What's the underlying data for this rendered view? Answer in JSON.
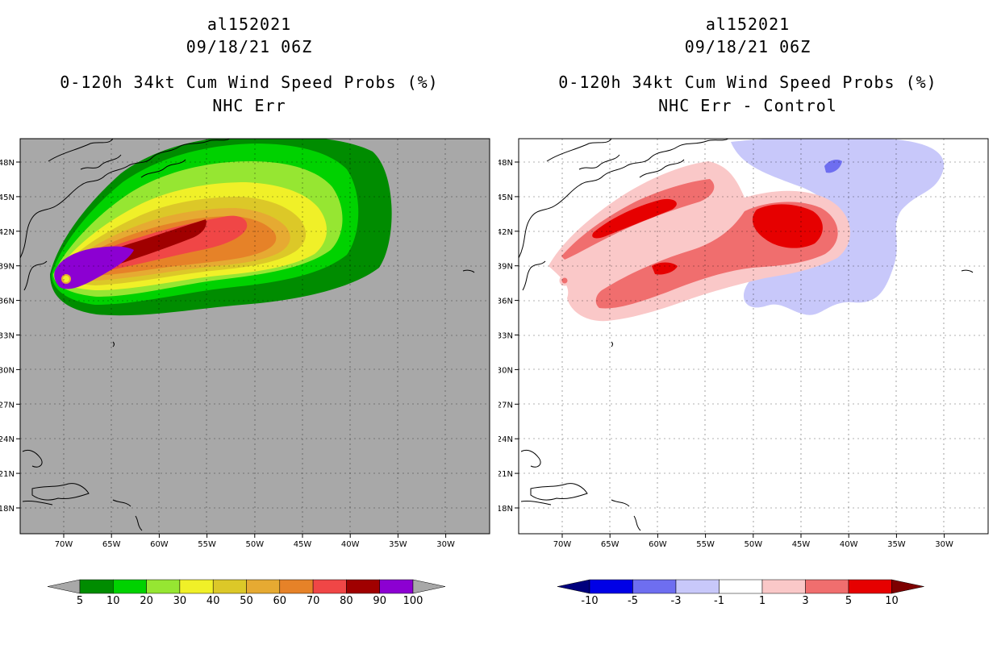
{
  "left_panel": {
    "storm_id": "al152021",
    "datetime": "09/18/21 06Z",
    "product": "0-120h 34kt Cum Wind Speed Probs (%)",
    "run": "NHC Err",
    "colorbar": {
      "labels": [
        "5",
        "10",
        "20",
        "30",
        "40",
        "50",
        "60",
        "70",
        "80",
        "90",
        "100"
      ],
      "colors": [
        "#008c00",
        "#00d200",
        "#96e632",
        "#f0f028",
        "#dcc828",
        "#e6aa32",
        "#e68228",
        "#f04646",
        "#a00000",
        "#8c00d2"
      ],
      "under_color": "#a8a8a8",
      "over_color": "#a8a8a8"
    }
  },
  "right_panel": {
    "storm_id": "al152021",
    "datetime": "09/18/21 06Z",
    "product": "0-120h 34kt Cum Wind Speed Probs (%)",
    "run": "NHC Err - Control",
    "colorbar": {
      "labels": [
        "-10",
        "-5",
        "-3",
        "-1",
        "1",
        "3",
        "5",
        "10"
      ],
      "colors": [
        "#0000e6",
        "#6e6ef0",
        "#c8c8fa",
        "#ffffff",
        "#fac8c8",
        "#f06e6e",
        "#e60000"
      ],
      "under_color": "#00007d",
      "over_color": "#7d0000"
    }
  },
  "map": {
    "lon_labels": [
      "70W",
      "65W",
      "60W",
      "55W",
      "50W",
      "45W",
      "40W",
      "35W",
      "30W"
    ],
    "lat_labels": [
      "48N",
      "45N",
      "42N",
      "39N",
      "36N",
      "33N",
      "30N",
      "27N",
      "24N",
      "21N",
      "18N"
    ],
    "left_background": "#a8a8a8",
    "right_background": "#ffffff"
  }
}
